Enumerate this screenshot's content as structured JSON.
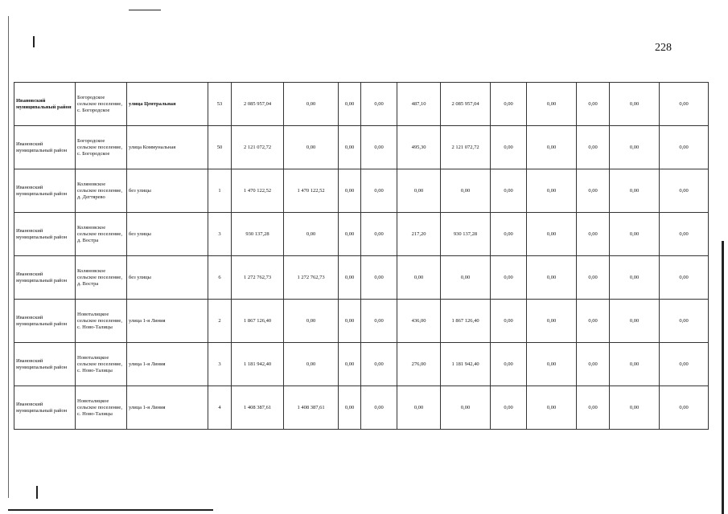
{
  "page_number": "228",
  "rows": [
    {
      "district": "Ивановский муниципальный район",
      "settlement": "Богородское сельское поселение, с. Богородское",
      "street": "улица Центральная",
      "house": "53",
      "c1": "2 085 957,04",
      "c2": "0,00",
      "c3": "0,00",
      "c4": "0,00",
      "c5": "487,10",
      "c6": "2 085 957,04",
      "c7": "0,00",
      "c8": "0,00",
      "c9": "0,00",
      "c10": "0,00",
      "c11": "0,00"
    },
    {
      "district": "Ивановский муниципальный район",
      "settlement": "Богородское сельское поселение, с. Богородское",
      "street": "улица Коммунальная",
      "house": "50",
      "c1": "2 121 072,72",
      "c2": "0,00",
      "c3": "0,00",
      "c4": "0,00",
      "c5": "495,30",
      "c6": "2 121 072,72",
      "c7": "0,00",
      "c8": "0,00",
      "c9": "0,00",
      "c10": "0,00",
      "c11": "0,00"
    },
    {
      "district": "Ивановский муниципальный район",
      "settlement": "Коляновское сельское поселение, д. Дегтярево",
      "street": "без улицы",
      "house": "1",
      "c1": "1 470 122,52",
      "c2": "1 470 122,52",
      "c3": "0,00",
      "c4": "0,00",
      "c5": "0,00",
      "c6": "0,00",
      "c7": "0,00",
      "c8": "0,00",
      "c9": "0,00",
      "c10": "0,00",
      "c11": "0,00"
    },
    {
      "district": "Ивановский муниципальный район",
      "settlement": "Коляновское сельское поселение, д. Востра",
      "street": "без улицы",
      "house": "3",
      "c1": "930 137,28",
      "c2": "0,00",
      "c3": "0,00",
      "c4": "0,00",
      "c5": "217,20",
      "c6": "930 137,28",
      "c7": "0,00",
      "c8": "0,00",
      "c9": "0,00",
      "c10": "0,00",
      "c11": "0,00"
    },
    {
      "district": "Ивановский муниципальный район",
      "settlement": "Коляновское сельское поселение, д. Востра",
      "street": "без улицы",
      "house": "6",
      "c1": "1 272 762,73",
      "c2": "1 272 762,73",
      "c3": "0,00",
      "c4": "0,00",
      "c5": "0,00",
      "c6": "0,00",
      "c7": "0,00",
      "c8": "0,00",
      "c9": "0,00",
      "c10": "0,00",
      "c11": "0,00"
    },
    {
      "district": "Ивановский муниципальный район",
      "settlement": "Новоталицкое сельское поселение, с. Ново-Талицы",
      "street": "улица 1-я Линия",
      "house": "2",
      "c1": "1 867 126,40",
      "c2": "0,00",
      "c3": "0,00",
      "c4": "0,00",
      "c5": "436,00",
      "c6": "1 867 126,40",
      "c7": "0,00",
      "c8": "0,00",
      "c9": "0,00",
      "c10": "0,00",
      "c11": "0,00"
    },
    {
      "district": "Ивановский муниципальный район",
      "settlement": "Новоталицкое сельское поселение, с. Ново-Талицы",
      "street": "улица 1-я Линия",
      "house": "3",
      "c1": "1 181 942,40",
      "c2": "0,00",
      "c3": "0,00",
      "c4": "0,00",
      "c5": "276,00",
      "c6": "1 181 942,40",
      "c7": "0,00",
      "c8": "0,00",
      "c9": "0,00",
      "c10": "0,00",
      "c11": "0,00"
    },
    {
      "district": "Ивановский муниципальный район",
      "settlement": "Новоталицкое сельское поселение, с. Ново-Талицы",
      "street": "улица 1-я Линия",
      "house": "4",
      "c1": "1 408 387,61",
      "c2": "1 408 387,61",
      "c3": "0,00",
      "c4": "0,00",
      "c5": "0,00",
      "c6": "0,00",
      "c7": "0,00",
      "c8": "0,00",
      "c9": "0,00",
      "c10": "0,00",
      "c11": "0,00"
    }
  ]
}
